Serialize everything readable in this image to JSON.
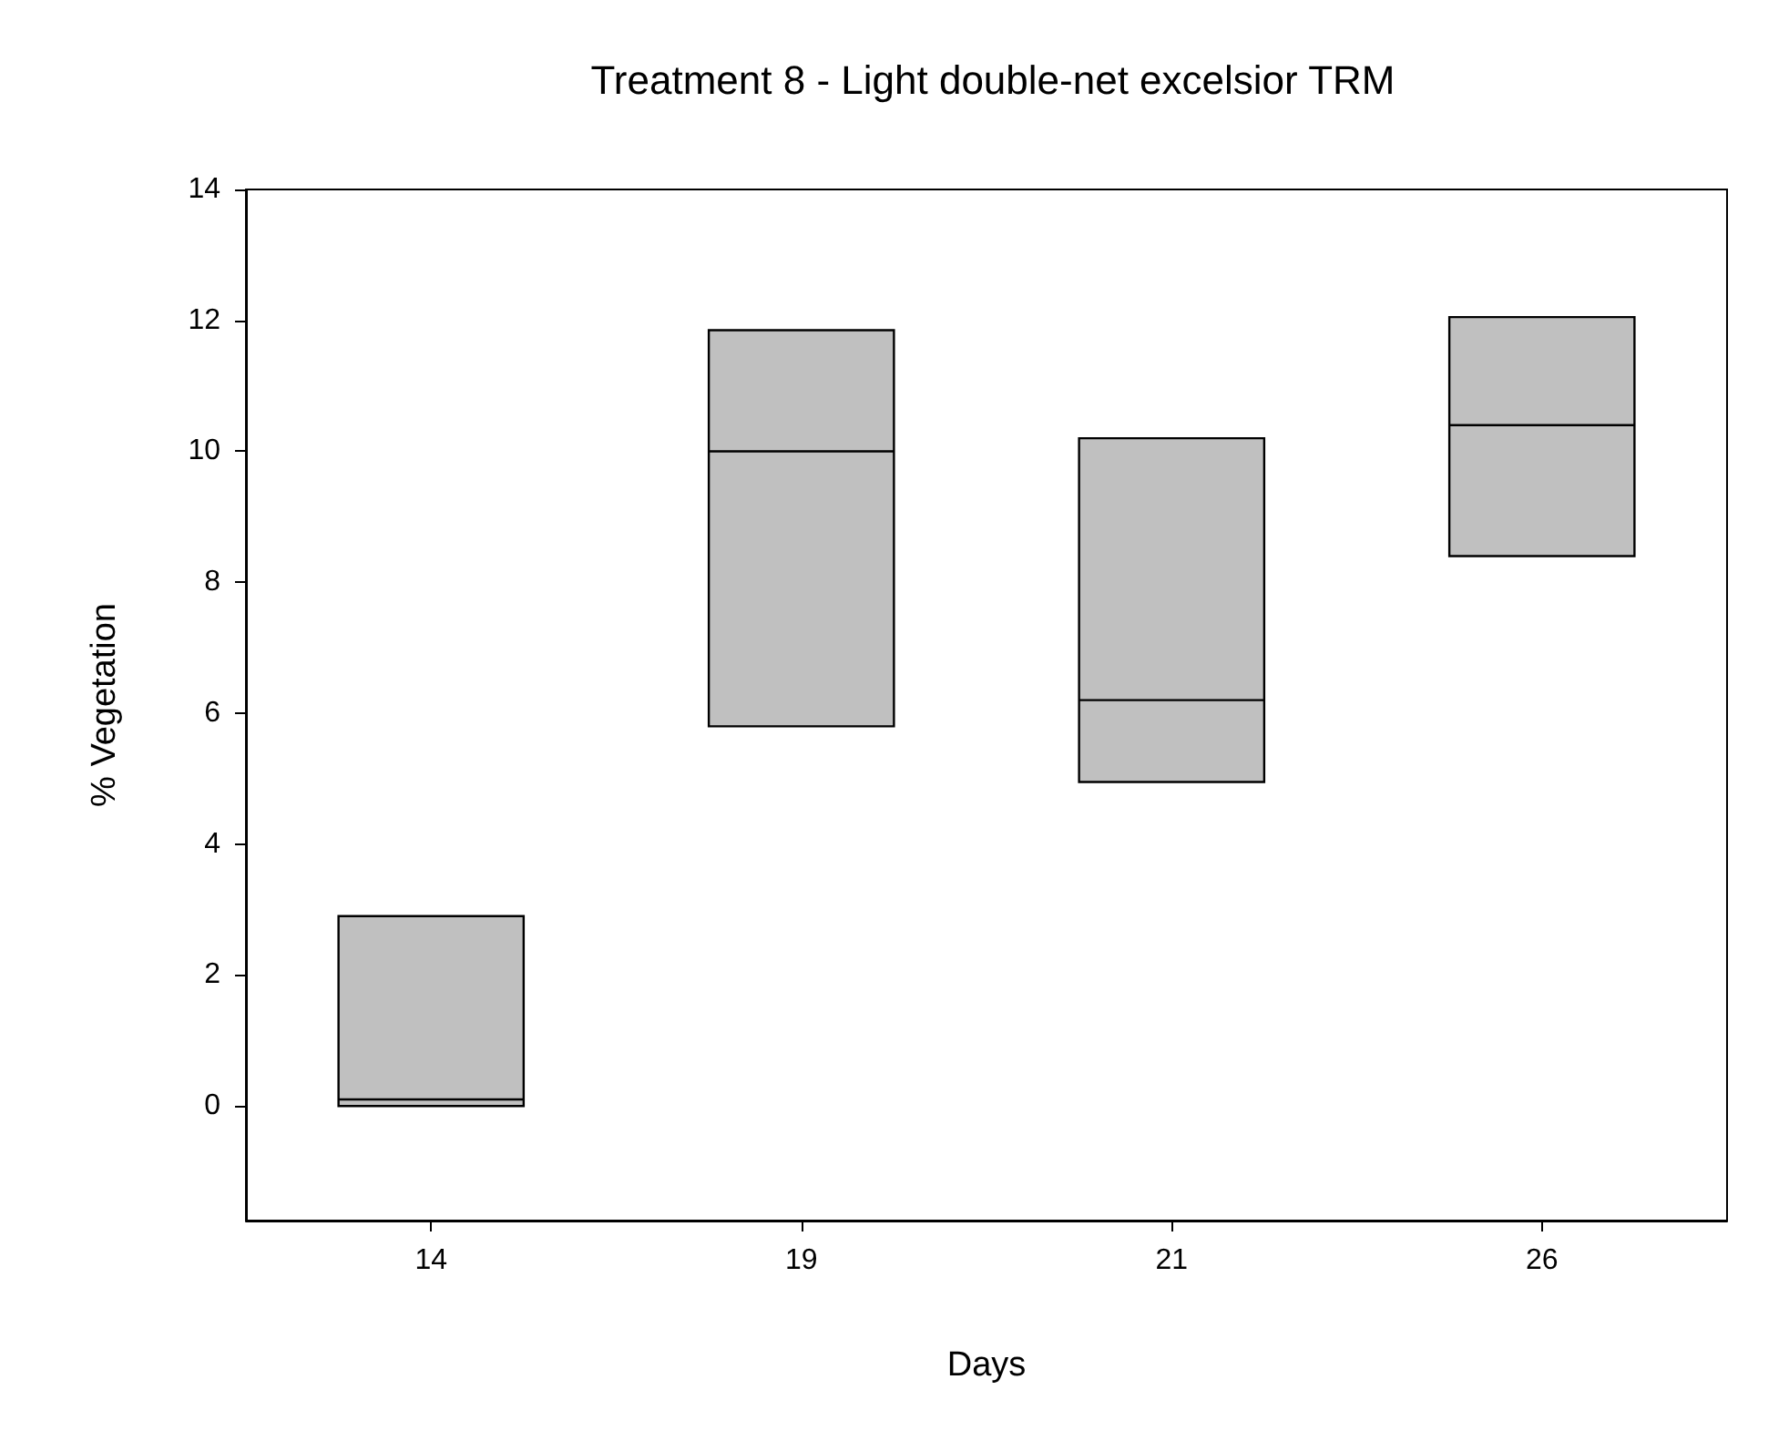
{
  "chart_data": {
    "type": "box",
    "title": "Treatment 8 - Light double-net excelsior TRM",
    "xlabel": "Days",
    "ylabel": "% Vegetation",
    "categories": [
      "14",
      "19",
      "21",
      "26"
    ],
    "series": [
      {
        "color": "#c0c0c0",
        "boxes": [
          {
            "low": 0,
            "q1": 0,
            "median": 0.1,
            "q3": 2.9,
            "high": 2.9
          },
          {
            "low": 5.8,
            "q1": 5.8,
            "median": 10,
            "q3": 11.85,
            "high": 11.85
          },
          {
            "low": 4.95,
            "q1": 4.95,
            "median": 6.2,
            "q3": 10.2,
            "high": 10.2
          },
          {
            "low": 8.4,
            "q1": 8.4,
            "median": 10.4,
            "q3": 12.05,
            "high": 12.05
          }
        ]
      }
    ],
    "ylim": [
      -1.75,
      14
    ],
    "yticks": [
      0,
      2,
      4,
      6,
      8,
      10,
      12,
      14
    ],
    "grid": false
  }
}
